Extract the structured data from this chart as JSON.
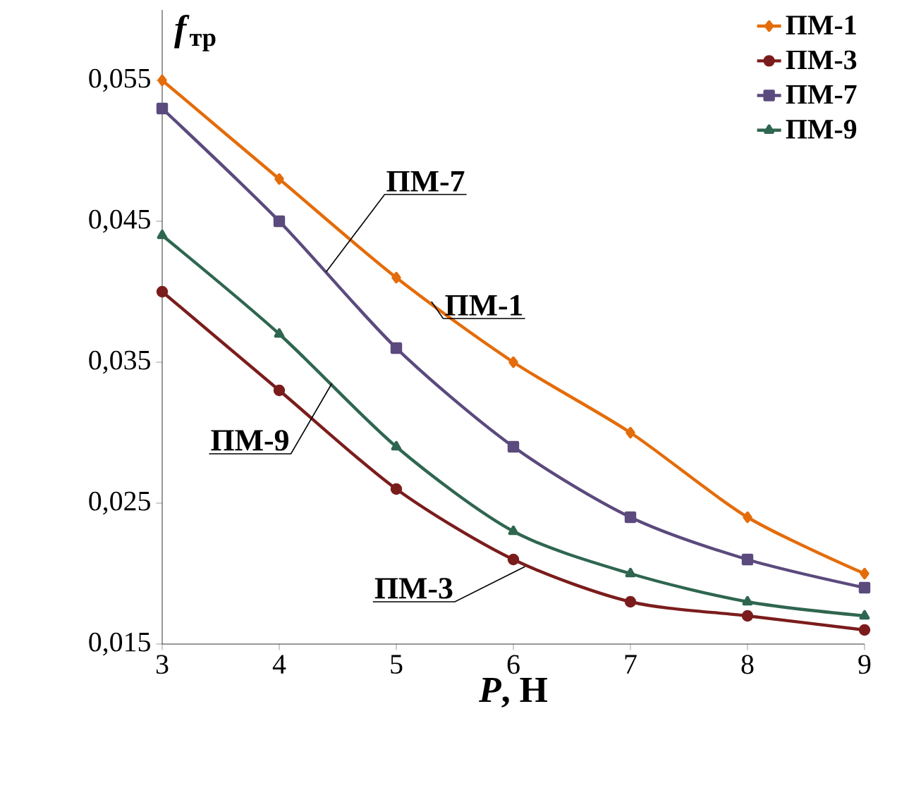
{
  "chart_data": {
    "type": "line",
    "x": [
      3,
      4,
      5,
      6,
      7,
      8,
      9
    ],
    "xlabel": "*P*, Н",
    "ylabel": "*f*$_{тр}$",
    "xlim": [
      3,
      9
    ],
    "xticks": [
      3,
      4,
      5,
      6,
      7,
      8,
      9
    ],
    "ylim": [
      0.015,
      0.06
    ],
    "yticks": [
      {
        "value": 0.015,
        "label": "0,015"
      },
      {
        "value": 0.025,
        "label": "0,025"
      },
      {
        "value": 0.035,
        "label": "0,035"
      },
      {
        "value": 0.045,
        "label": "0,045"
      },
      {
        "value": 0.055,
        "label": "0,055"
      }
    ],
    "grid": false,
    "legend": "top right",
    "line_style": "solid",
    "series": [
      {
        "name": "ПМ-1",
        "color": "#e46c0a",
        "marker": "diamond",
        "values": [
          0.055,
          0.048,
          0.041,
          0.035,
          0.03,
          0.024,
          0.02
        ]
      },
      {
        "name": "ПМ-3",
        "color": "#7b1c1c",
        "marker": "circle",
        "values": [
          0.04,
          0.033,
          0.026,
          0.021,
          0.018,
          0.017,
          0.016
        ]
      },
      {
        "name": "ПМ-7",
        "color": "#5b4a7d",
        "marker": "square",
        "values": [
          0.053,
          0.045,
          0.036,
          0.029,
          0.024,
          0.021,
          0.019
        ]
      },
      {
        "name": "ПМ-9",
        "color": "#2f6650",
        "marker": "triangle",
        "values": [
          0.044,
          0.037,
          0.029,
          0.023,
          0.02,
          0.018,
          0.017
        ]
      }
    ],
    "annotations": [
      {
        "text": "ПМ-7",
        "x": 4.4,
        "y": 0.0414
      },
      {
        "text": "ПМ-1",
        "x": 5.3,
        "y": 0.0393
      },
      {
        "text": "ПМ-9",
        "x": 4.45,
        "y": 0.0335
      },
      {
        "text": "ПМ-3",
        "x": 6.1,
        "y": 0.0205
      }
    ]
  }
}
